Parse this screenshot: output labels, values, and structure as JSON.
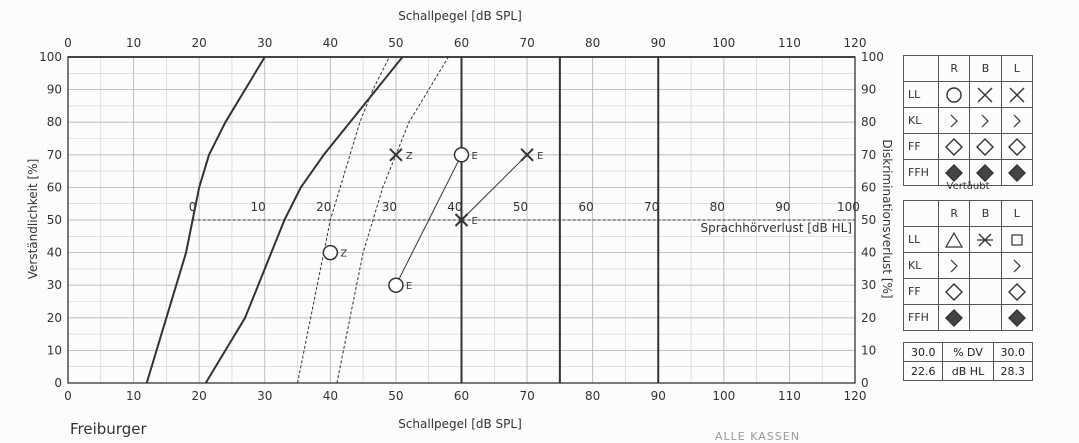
{
  "chart_data": {
    "type": "line",
    "title": "",
    "xlabel": "Schallpegel [dB SPL]",
    "ylabel": "Verständlichkeit [%]",
    "secondary_ylabel": "Diskriminationsverlust [%]",
    "secondary_xlabel": "Sprachhörverlust [dB HL]",
    "xlim": [
      0,
      120
    ],
    "ylim": [
      0,
      100
    ],
    "x_ticks": [
      0,
      10,
      20,
      30,
      40,
      50,
      60,
      70,
      80,
      90,
      100,
      110,
      120
    ],
    "y_ticks": [
      0,
      10,
      20,
      30,
      40,
      50,
      60,
      70,
      80,
      90,
      100
    ],
    "right_ticks": [
      100,
      90,
      80,
      70,
      60,
      50,
      40,
      30,
      20,
      10,
      0
    ],
    "hl_ticks": [
      {
        "label": "0",
        "x": 19
      },
      {
        "label": "10",
        "x": 29
      },
      {
        "label": "20",
        "x": 39
      },
      {
        "label": "30",
        "x": 49
      },
      {
        "label": "40",
        "x": 59
      },
      {
        "label": "50",
        "x": 69
      },
      {
        "label": "60",
        "x": 79
      },
      {
        "label": "70",
        "x": 89
      },
      {
        "label": "80",
        "x": 99
      },
      {
        "label": "90",
        "x": 109
      },
      {
        "label": "100",
        "x": 119
      }
    ],
    "hl_line_y": 50,
    "thick_verticals": [
      60,
      75,
      90
    ],
    "grid": true,
    "series": [
      {
        "style": "solid",
        "points": [
          [
            12,
            0
          ],
          [
            13.5,
            10
          ],
          [
            15,
            20
          ],
          [
            16.5,
            30
          ],
          [
            18,
            40
          ],
          [
            19,
            50
          ],
          [
            20,
            60
          ],
          [
            21.5,
            70
          ],
          [
            24,
            80
          ],
          [
            27,
            90
          ],
          [
            30,
            100
          ]
        ]
      },
      {
        "style": "solid",
        "points": [
          [
            21,
            0
          ],
          [
            24,
            10
          ],
          [
            27,
            20
          ],
          [
            29,
            30
          ],
          [
            31,
            40
          ],
          [
            33,
            50
          ],
          [
            35.5,
            60
          ],
          [
            39,
            70
          ],
          [
            43,
            80
          ],
          [
            47,
            90
          ],
          [
            51,
            100
          ]
        ]
      },
      {
        "style": "dashed",
        "points": [
          [
            35,
            0
          ],
          [
            36,
            10
          ],
          [
            37,
            20
          ],
          [
            38,
            30
          ],
          [
            39,
            40
          ],
          [
            40,
            50
          ],
          [
            41.5,
            60
          ],
          [
            43,
            70
          ],
          [
            44.5,
            80
          ],
          [
            46.5,
            90
          ],
          [
            49,
            100
          ]
        ]
      },
      {
        "style": "dashed",
        "points": [
          [
            41,
            0
          ],
          [
            42,
            10
          ],
          [
            43,
            20
          ],
          [
            44,
            30
          ],
          [
            45,
            40
          ],
          [
            46.5,
            50
          ],
          [
            48,
            60
          ],
          [
            50,
            70
          ],
          [
            52,
            80
          ],
          [
            55,
            90
          ],
          [
            58,
            100
          ]
        ]
      }
    ],
    "markers": [
      {
        "symbol": "circle",
        "x": 40,
        "y": 40,
        "label": "Z"
      },
      {
        "symbol": "cross",
        "x": 50,
        "y": 70,
        "label": "Z"
      },
      {
        "symbol": "circle",
        "x": 60,
        "y": 70,
        "label": "E"
      },
      {
        "symbol": "circle",
        "x": 50,
        "y": 30,
        "label": "E"
      },
      {
        "symbol": "cross",
        "x": 60,
        "y": 50,
        "label": "E"
      },
      {
        "symbol": "cross",
        "x": 70,
        "y": 70,
        "label": "E"
      }
    ],
    "connectors": [
      {
        "from": [
          50,
          30
        ],
        "to": [
          60,
          70
        ]
      },
      {
        "from": [
          60,
          50
        ],
        "to": [
          70,
          70
        ]
      }
    ]
  },
  "legend": {
    "columns": [
      "R",
      "B",
      "L"
    ],
    "rows": [
      {
        "label": "LL",
        "symbols": [
          "circle",
          "cross",
          "cross"
        ]
      },
      {
        "label": "KL",
        "symbols": [
          "chevron",
          "chevron",
          "chevron"
        ]
      },
      {
        "label": "FF",
        "symbols": [
          "diamond-open",
          "diamond-open",
          "diamond-open"
        ]
      },
      {
        "label": "FFH",
        "symbols": [
          "diamond-filled",
          "diamond-filled",
          "diamond-filled"
        ]
      }
    ],
    "masked_caption": "Vertäubt",
    "masked_rows": [
      {
        "label": "LL",
        "symbols": [
          "triangle",
          "asterisk",
          "square"
        ]
      },
      {
        "label": "KL",
        "symbols": [
          "chevron",
          "",
          "chevron"
        ]
      },
      {
        "label": "FF",
        "symbols": [
          "diamond-open",
          "",
          "diamond-open"
        ]
      },
      {
        "label": "FFH",
        "symbols": [
          "diamond-filled",
          "",
          "diamond-filled"
        ]
      }
    ]
  },
  "summary": {
    "row1": {
      "left": "30.0",
      "unit": "% DV",
      "right": "30.0"
    },
    "row2": {
      "left": "22.6",
      "unit": "dB HL",
      "right": "28.3"
    }
  },
  "footer": {
    "title": "Freiburger",
    "stamp": "ALLE KASSEN"
  },
  "colors": {
    "ink": "#333333",
    "grid": "#cfcfcf",
    "background": "#fcfcfb"
  }
}
